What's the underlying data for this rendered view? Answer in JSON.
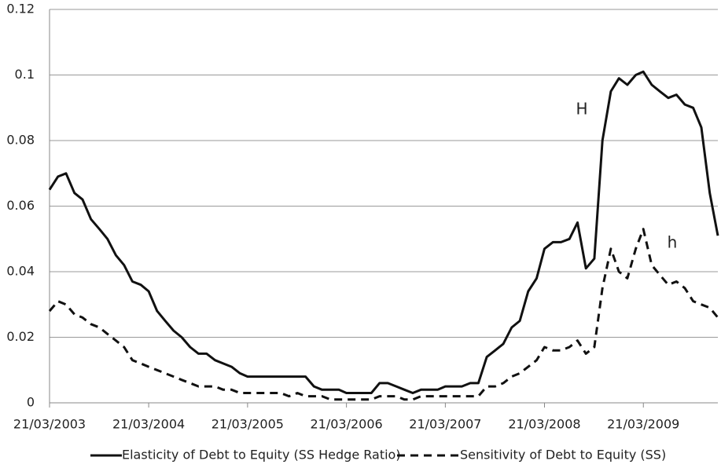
{
  "chart_data": {
    "type": "line",
    "x": [
      "21/03/2003",
      "21/04/2003",
      "21/05/2003",
      "21/06/2003",
      "21/07/2003",
      "21/08/2003",
      "21/09/2003",
      "21/10/2003",
      "21/11/2003",
      "21/12/2003",
      "21/01/2004",
      "21/02/2004",
      "21/03/2004",
      "21/04/2004",
      "21/05/2004",
      "21/06/2004",
      "21/07/2004",
      "21/08/2004",
      "21/09/2004",
      "21/10/2004",
      "21/11/2004",
      "21/12/2004",
      "21/01/2005",
      "21/02/2005",
      "21/03/2005",
      "21/04/2005",
      "21/05/2005",
      "21/06/2005",
      "21/07/2005",
      "21/08/2005",
      "21/09/2005",
      "21/10/2005",
      "21/11/2005",
      "21/12/2005",
      "21/01/2006",
      "21/02/2006",
      "21/03/2006",
      "21/04/2006",
      "21/05/2006",
      "21/06/2006",
      "21/07/2006",
      "21/08/2006",
      "21/09/2006",
      "21/10/2006",
      "21/11/2006",
      "21/12/2006",
      "21/01/2007",
      "21/02/2007",
      "21/03/2007",
      "21/04/2007",
      "21/05/2007",
      "21/06/2007",
      "21/07/2007",
      "21/08/2007",
      "21/09/2007",
      "21/10/2007",
      "21/11/2007",
      "21/12/2007",
      "21/01/2008",
      "21/02/2008",
      "21/03/2008",
      "21/04/2008",
      "21/05/2008",
      "21/06/2008",
      "21/07/2008",
      "21/08/2008",
      "21/09/2008",
      "21/10/2008",
      "21/11/2008",
      "21/12/2008",
      "21/01/2009",
      "21/02/2009",
      "21/03/2009",
      "21/04/2009",
      "21/05/2009",
      "21/06/2009",
      "21/07/2009",
      "21/08/2009",
      "21/09/2009",
      "21/10/2009",
      "21/11/2009",
      "21/12/2009"
    ],
    "series": [
      {
        "name": "Elasticity of Debt to Equity (SS Hedge Ratio)",
        "color": "#111111",
        "dash": "solid",
        "values": [
          0.065,
          0.069,
          0.07,
          0.064,
          0.062,
          0.056,
          0.053,
          0.05,
          0.045,
          0.042,
          0.037,
          0.036,
          0.034,
          0.028,
          0.025,
          0.022,
          0.02,
          0.017,
          0.015,
          0.015,
          0.013,
          0.012,
          0.011,
          0.009,
          0.008,
          0.008,
          0.008,
          0.008,
          0.008,
          0.008,
          0.008,
          0.008,
          0.005,
          0.004,
          0.004,
          0.004,
          0.003,
          0.003,
          0.003,
          0.003,
          0.006,
          0.006,
          0.005,
          0.004,
          0.003,
          0.004,
          0.004,
          0.004,
          0.005,
          0.005,
          0.005,
          0.006,
          0.006,
          0.014,
          0.016,
          0.018,
          0.023,
          0.025,
          0.034,
          0.038,
          0.047,
          0.049,
          0.049,
          0.05,
          0.055,
          0.041,
          0.044,
          0.08,
          0.095,
          0.099,
          0.097,
          0.1,
          0.101,
          0.097,
          0.095,
          0.093,
          0.094,
          0.091,
          0.09,
          0.084,
          0.064,
          0.051
        ]
      },
      {
        "name": "Sensitivity of Debt to Equity (SS)",
        "color": "#111111",
        "dash": "dashed",
        "values": [
          0.028,
          0.031,
          0.03,
          0.027,
          0.026,
          0.024,
          0.023,
          0.021,
          0.019,
          0.017,
          0.013,
          0.012,
          0.011,
          0.01,
          0.009,
          0.008,
          0.007,
          0.006,
          0.005,
          0.005,
          0.005,
          0.004,
          0.004,
          0.003,
          0.003,
          0.003,
          0.003,
          0.003,
          0.003,
          0.002,
          0.003,
          0.002,
          0.002,
          0.002,
          0.001,
          0.001,
          0.001,
          0.001,
          0.001,
          0.001,
          0.002,
          0.002,
          0.002,
          0.001,
          0.001,
          0.002,
          0.002,
          0.002,
          0.002,
          0.002,
          0.002,
          0.002,
          0.002,
          0.005,
          0.005,
          0.006,
          0.008,
          0.009,
          0.011,
          0.013,
          0.017,
          0.016,
          0.016,
          0.017,
          0.019,
          0.015,
          0.017,
          0.035,
          0.047,
          0.04,
          0.038,
          0.047,
          0.053,
          0.042,
          0.039,
          0.036,
          0.037,
          0.035,
          0.031,
          0.03,
          0.029,
          0.026
        ]
      }
    ],
    "annotations": [
      "H",
      "h"
    ],
    "xlim": [
      "21/03/2003",
      "21/12/2009"
    ],
    "xticks": [
      "21/03/2003",
      "21/03/2004",
      "21/03/2005",
      "21/03/2006",
      "21/03/2007",
      "21/03/2008",
      "21/03/2009"
    ],
    "ylim": [
      0,
      0.12
    ],
    "yticks": [
      0,
      0.02,
      0.04,
      0.06,
      0.08,
      0.1,
      0.12
    ],
    "grid": true,
    "legend": "bottom"
  }
}
